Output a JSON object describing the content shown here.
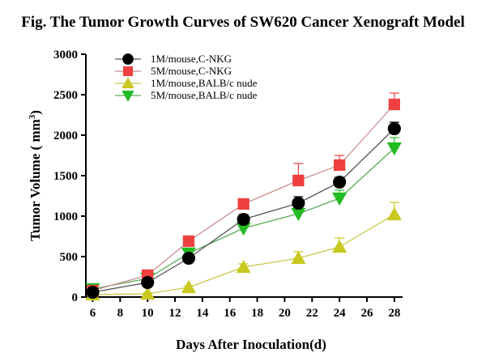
{
  "chart_data": {
    "type": "line",
    "title": "Fig. The Tumor Growth Curves of  SW620 Cancer Xenograft Model",
    "xlabel": "Days After Inoculation(d)",
    "ylabel_main": "Tumor Volume ( mm",
    "ylabel_sup": "3",
    "ylabel_end": ")",
    "xlim": [
      5.5,
      28.6
    ],
    "ylim": [
      0,
      3000
    ],
    "xticks": [
      6,
      8,
      10,
      12,
      14,
      16,
      18,
      20,
      22,
      24,
      26,
      28
    ],
    "yticks": [
      0,
      500,
      1000,
      1500,
      2000,
      2500,
      3000
    ],
    "grid": false,
    "legend_position": "top-left",
    "x": [
      6,
      10,
      13,
      17,
      21,
      24,
      28
    ],
    "series": [
      {
        "name": "1M/mouse,C-NKG",
        "marker": "circle",
        "color": "#000000",
        "line_color": "#555555",
        "values": [
          60,
          180,
          480,
          960,
          1160,
          1420,
          2080
        ],
        "errors": [
          20,
          30,
          40,
          60,
          80,
          60,
          80
        ]
      },
      {
        "name": "5M/mouse,C-NKG",
        "marker": "square",
        "color": "#ee4040",
        "line_color": "#c89090",
        "values": [
          80,
          270,
          690,
          1150,
          1440,
          1630,
          2380
        ],
        "errors": [
          20,
          40,
          40,
          60,
          210,
          120,
          140
        ]
      },
      {
        "name": "1M/mouse,BALB/c nude",
        "marker": "triangle-up",
        "color": "#c8c820",
        "line_color": "#c8c84a",
        "values": [
          30,
          40,
          120,
          370,
          480,
          620,
          1020
        ],
        "errors": [
          10,
          10,
          20,
          40,
          80,
          110,
          150
        ]
      },
      {
        "name": "5M/mouse,BALB/c nude",
        "marker": "triangle-down",
        "color": "#22bb22",
        "line_color": "#5aaa5a",
        "values": [
          100,
          230,
          540,
          850,
          1030,
          1220,
          1840
        ],
        "errors": [
          30,
          30,
          50,
          70,
          80,
          100,
          130
        ]
      }
    ]
  }
}
